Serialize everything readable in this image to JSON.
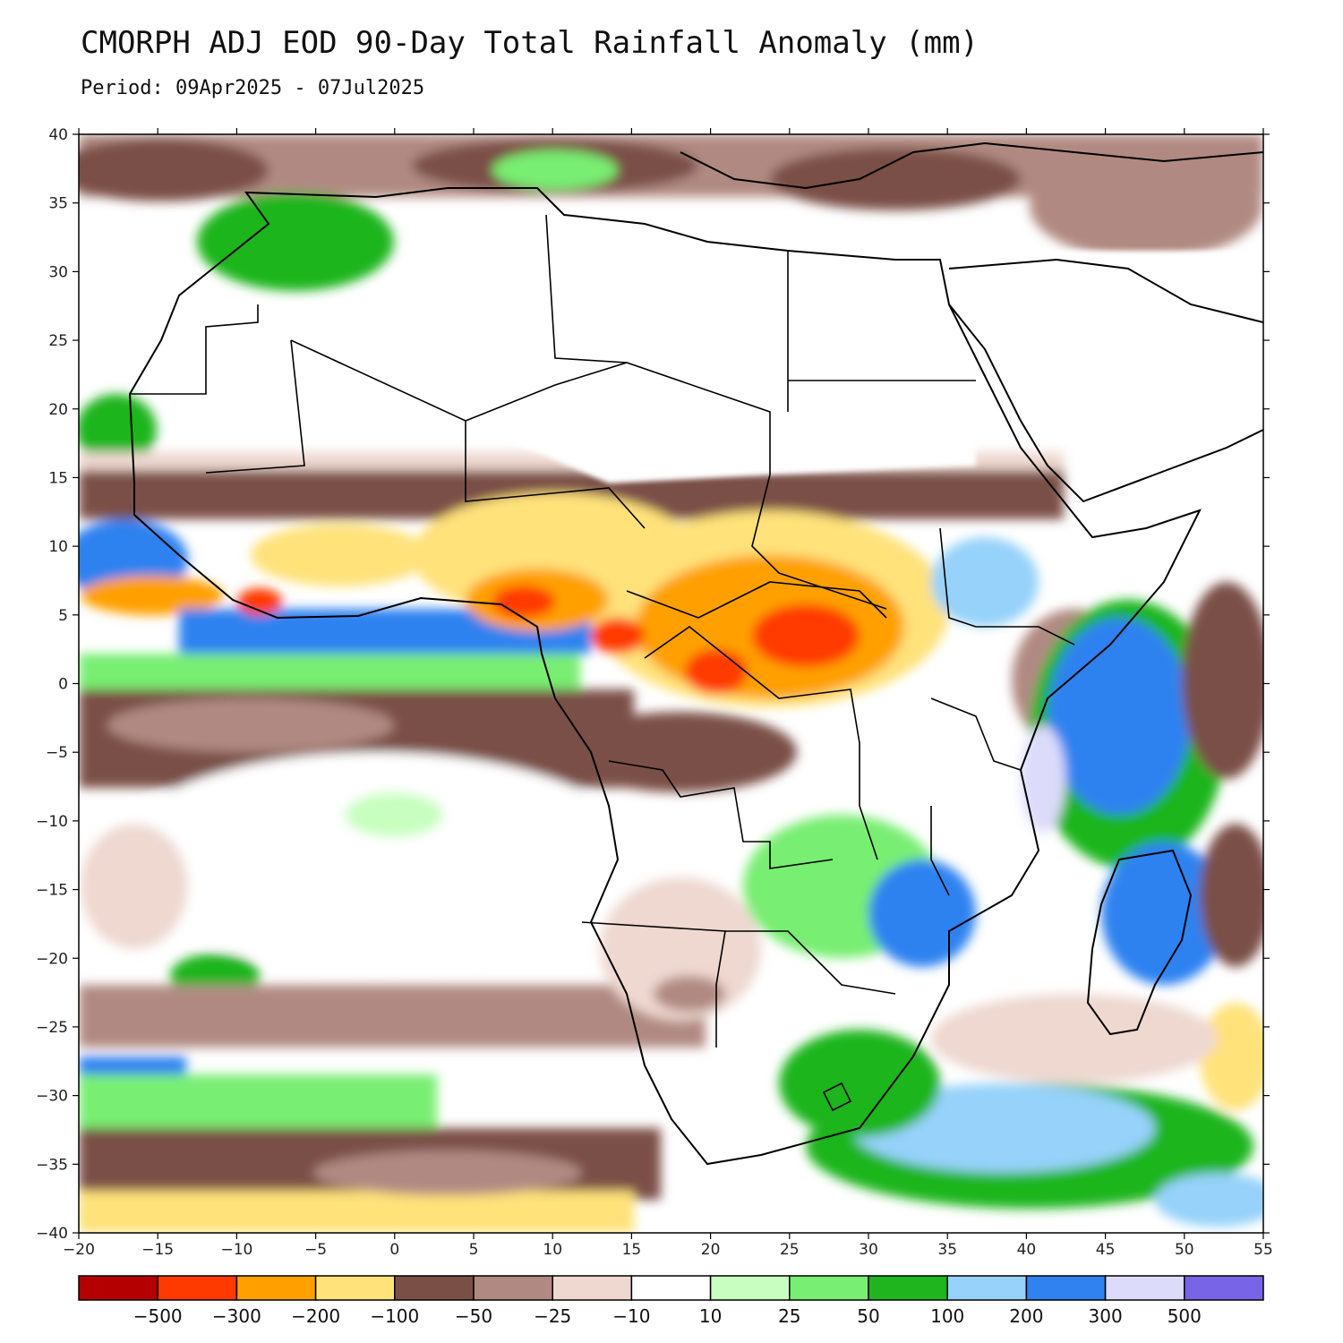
{
  "title": "CMORPH ADJ EOD 90-Day Total Rainfall Anomaly (mm)",
  "period": "Period: 09Apr2025 - 07Jul2025",
  "map": {
    "lon_range": [
      -20,
      55
    ],
    "lat_range": [
      -40,
      40
    ],
    "lon_ticks": [
      "−20",
      "−15",
      "−10",
      "−5",
      "0",
      "5",
      "10",
      "15",
      "20",
      "25",
      "30",
      "35",
      "40",
      "45",
      "50",
      "55"
    ],
    "lat_ticks": [
      "40",
      "35",
      "30",
      "25",
      "20",
      "15",
      "10",
      "5",
      "0",
      "−5",
      "−10",
      "−15",
      "−20",
      "−25",
      "−30",
      "−35",
      "−40"
    ],
    "lon_values": [
      -20,
      -15,
      -10,
      -5,
      0,
      5,
      10,
      15,
      20,
      25,
      30,
      35,
      40,
      45,
      50,
      55
    ],
    "lat_values": [
      40,
      35,
      30,
      25,
      20,
      15,
      10,
      5,
      0,
      -5,
      -10,
      -15,
      -20,
      -25,
      -30,
      -35,
      -40
    ]
  },
  "colorbar": {
    "colors": [
      "#b40000",
      "#ff3a00",
      "#ffa000",
      "#ffe27a",
      "#7a5046",
      "#b08a82",
      "#eed8d0",
      "#ffffff",
      "#c8ffc0",
      "#78ee72",
      "#1eb51e",
      "#96d2fa",
      "#2f82f0",
      "#dcdcfa",
      "#7864e6"
    ],
    "labels": [
      "−500",
      "−300",
      "−200",
      "−100",
      "−50",
      "−25",
      "−10",
      "10",
      "25",
      "50",
      "100",
      "200",
      "300",
      "500"
    ]
  },
  "palette": {
    "dry_extreme": "#b40000",
    "dry_strong": "#ff3a00",
    "dry_orange": "#ffa000",
    "dry_yellow": "#ffe27a",
    "brown_dark": "#7a5046",
    "brown_mid": "#b08a82",
    "brown_light": "#eed8d0",
    "wet_pale": "#c8ffc0",
    "wet_light": "#78ee72",
    "wet_green": "#1eb51e",
    "wet_sky": "#96d2fa",
    "wet_blue": "#2f82f0",
    "wet_lavender": "#dcdcfa",
    "wet_purple": "#7864e6"
  }
}
